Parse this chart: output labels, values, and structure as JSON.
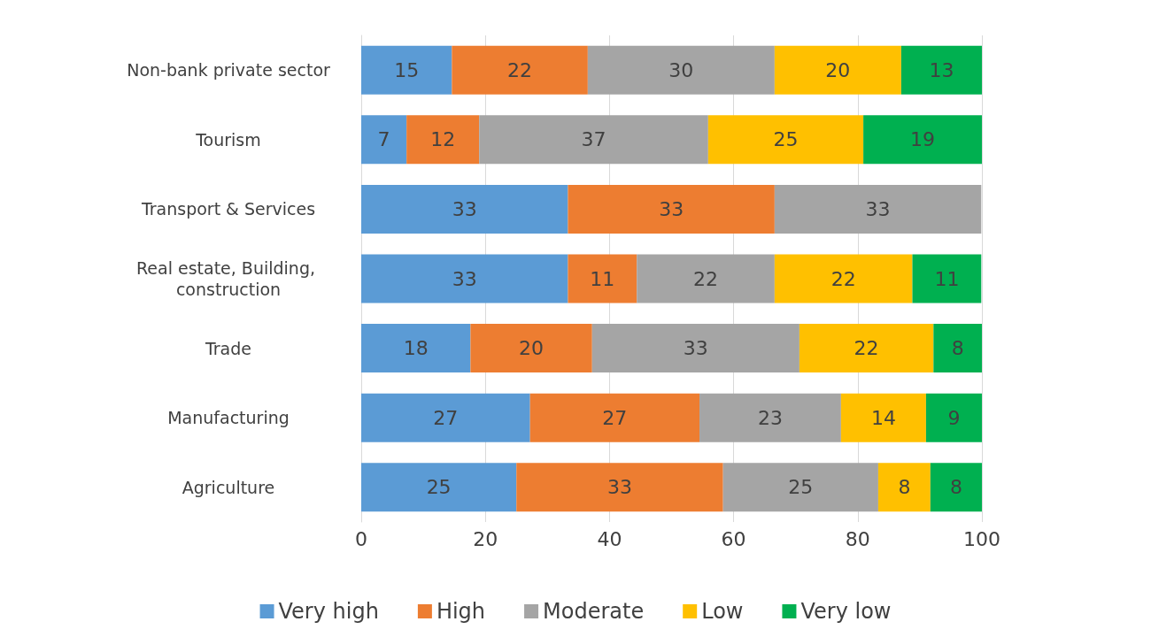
{
  "chart_data": {
    "type": "bar",
    "orientation": "horizontal",
    "stacked": true,
    "categories": [
      "Non-bank private sector",
      "Tourism",
      "Transport & Services",
      "Real estate, Building, construction",
      "Trade",
      "Manufacturing",
      "Agriculture"
    ],
    "series": [
      {
        "name": "Very high",
        "color": "#5b9bd5",
        "values": [
          14.6,
          7.3,
          33.3,
          33.3,
          17.6,
          27.2,
          25.0
        ],
        "value_labels": [
          "15",
          "7",
          "33",
          "33",
          "18",
          "27",
          "25"
        ]
      },
      {
        "name": "High",
        "color": "#ed7d31",
        "values": [
          21.9,
          11.7,
          33.3,
          11.1,
          19.6,
          27.3,
          33.3
        ],
        "value_labels": [
          "22",
          "12",
          "33",
          "11",
          "20",
          "27",
          "33"
        ]
      },
      {
        "name": "Moderate",
        "color": "#a5a5a5",
        "values": [
          30.1,
          36.9,
          33.3,
          22.2,
          33.4,
          22.8,
          25.0
        ],
        "value_labels": [
          "30",
          "37",
          "33",
          "22",
          "33",
          "23",
          "25"
        ]
      },
      {
        "name": "Low",
        "color": "#ffc000",
        "values": [
          20.4,
          25.0,
          null,
          22.2,
          21.6,
          13.7,
          8.4
        ],
        "value_labels": [
          "20",
          "25",
          null,
          "22",
          "22",
          "14",
          "8"
        ]
      },
      {
        "name": "Very low",
        "color": "#00b050",
        "values": [
          13.0,
          19.1,
          null,
          11.1,
          7.8,
          9.0,
          8.3
        ],
        "value_labels": [
          "13",
          "19",
          null,
          "11",
          "8",
          "9",
          "8"
        ]
      }
    ],
    "xlim": [
      0,
      100
    ],
    "xticks": [
      0,
      20,
      40,
      60,
      80,
      100
    ],
    "grid": "x",
    "legend": "bottom"
  }
}
